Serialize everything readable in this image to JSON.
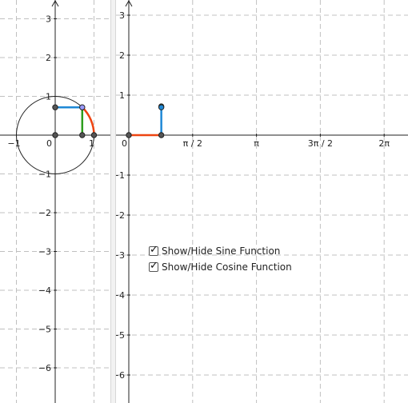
{
  "left_view": {
    "y_ticks": [
      {
        "v": 3,
        "label": "3"
      },
      {
        "v": 2,
        "label": "2"
      },
      {
        "v": 1,
        "label": "1"
      },
      {
        "v": -1,
        "label": "−1"
      },
      {
        "v": -2,
        "label": "−2"
      },
      {
        "v": -3,
        "label": "−3"
      },
      {
        "v": -4,
        "label": "−4"
      },
      {
        "v": -5,
        "label": "−5"
      },
      {
        "v": -6,
        "label": "−6"
      }
    ],
    "x_ticks": [
      {
        "v": -1,
        "label": "−1"
      },
      {
        "v": 0,
        "label": "0"
      },
      {
        "v": 1,
        "label": "1"
      }
    ],
    "circle_radius": 1,
    "angle_rad": 0.8,
    "point_fill": "#9999ff"
  },
  "right_view": {
    "origin_label": "0",
    "x_ticks": [
      {
        "v": 1.5708,
        "label": "π / 2"
      },
      {
        "v": 3.1416,
        "label": "π"
      },
      {
        "v": 4.7124,
        "label": "3π / 2"
      },
      {
        "v": 6.2832,
        "label": "2π"
      }
    ],
    "y_ticks": [
      {
        "v": 3,
        "label": "3"
      },
      {
        "v": 2,
        "label": "2"
      },
      {
        "v": 1,
        "label": "1"
      },
      {
        "v": -1,
        "label": "−1"
      },
      {
        "v": -2,
        "label": "−2"
      },
      {
        "v": -3,
        "label": "−3"
      },
      {
        "v": -4,
        "label": "−4"
      },
      {
        "v": -5,
        "label": "−5"
      },
      {
        "v": -6,
        "label": "−6"
      }
    ],
    "angle_rad": 0.8
  },
  "colors": {
    "sine": "#2e9e1f",
    "cosine": "#1e88d6",
    "arc": "#ee4411",
    "axis": "#222222",
    "grid": "#c0c0c0",
    "point": "#555555"
  },
  "checkboxes": [
    {
      "label": "Show/Hide Sine Function",
      "checked": true
    },
    {
      "label": "Show/Hide Cosine Function",
      "checked": true
    }
  ],
  "check_glyph": "✓"
}
